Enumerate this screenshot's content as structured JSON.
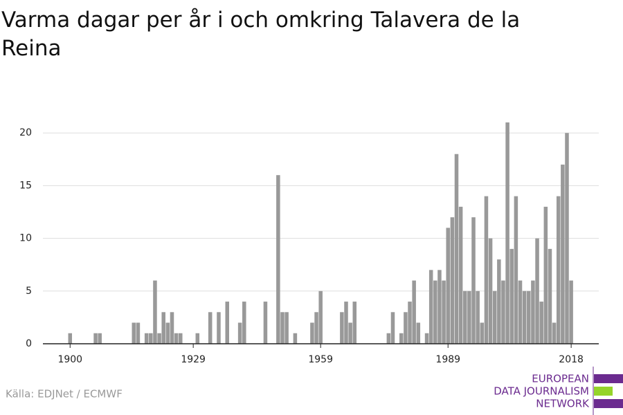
{
  "chart_data": {
    "type": "bar",
    "title": "Varma dagar per år i och omkring Talavera de la Reina",
    "x": [
      1900,
      1906,
      1907,
      1915,
      1916,
      1918,
      1919,
      1920,
      1921,
      1922,
      1923,
      1924,
      1925,
      1926,
      1930,
      1933,
      1935,
      1937,
      1940,
      1941,
      1946,
      1949,
      1950,
      1951,
      1953,
      1957,
      1958,
      1959,
      1964,
      1965,
      1966,
      1967,
      1975,
      1976,
      1978,
      1979,
      1980,
      1981,
      1982,
      1984,
      1985,
      1986,
      1987,
      1988,
      1989,
      1990,
      1991,
      1992,
      1993,
      1994,
      1995,
      1996,
      1997,
      1998,
      1999,
      2000,
      2001,
      2002,
      2003,
      2004,
      2005,
      2006,
      2007,
      2008,
      2009,
      2010,
      2011,
      2012,
      2013,
      2014,
      2015,
      2016,
      2017,
      2018
    ],
    "values": [
      1,
      1,
      1,
      2,
      2,
      1,
      1,
      6,
      1,
      3,
      2,
      3,
      1,
      1,
      1,
      3,
      3,
      4,
      2,
      4,
      4,
      16,
      3,
      3,
      1,
      2,
      3,
      5,
      3,
      4,
      2,
      4,
      1,
      3,
      1,
      3,
      4,
      6,
      2,
      1,
      7,
      6,
      7,
      6,
      11,
      12,
      18,
      13,
      5,
      5,
      12,
      5,
      2,
      14,
      10,
      5,
      8,
      6,
      21,
      9,
      14,
      6,
      5,
      5,
      6,
      10,
      4,
      13,
      9,
      2,
      14,
      17,
      20,
      6
    ],
    "color": "#999999",
    "xlim": [
      1893.6,
      2024.5
    ],
    "xticks": [
      1900,
      1929,
      1959,
      1989,
      2018
    ],
    "ylim": [
      0,
      21
    ],
    "yticks": [
      0,
      5,
      10,
      15,
      20
    ],
    "grid": true
  },
  "source": "Källa: EDJNet / ECMWF",
  "logo": [
    "EUROPEAN",
    "DATA JOURNALISM",
    "NETWORK"
  ]
}
